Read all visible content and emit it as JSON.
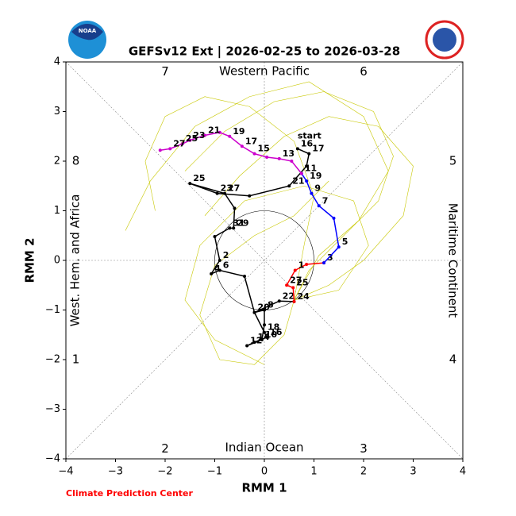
{
  "chart_data": {
    "type": "line",
    "title": "GEFSv12 Ext | 2026-02-25 to 2026-03-28",
    "xlabel": "RMM 1",
    "ylabel": "RMM 2",
    "regions": {
      "top": "Western Pacific",
      "bottom": "Indian Ocean",
      "left": "West. Hem. and Africa",
      "right": "Maritime Continent"
    },
    "phases": [
      "1",
      "2",
      "3",
      "4",
      "5",
      "6",
      "7",
      "8"
    ],
    "start_label": "start",
    "credit": "Climate Prediction Center",
    "logo_text": "NOAA",
    "xlim": [
      -4,
      4
    ],
    "ylim": [
      -4,
      4
    ],
    "xticks": [
      {
        "value": -4,
        "label": "−4"
      },
      {
        "value": -3,
        "label": "−3"
      },
      {
        "value": -2,
        "label": "−2"
      },
      {
        "value": -1,
        "label": "−1"
      },
      0,
      1,
      2,
      3,
      4
    ],
    "yticks": [
      {
        "value": -4,
        "label": "−4"
      },
      {
        "value": -3,
        "label": "−3"
      },
      {
        "value": -2,
        "label": "−2"
      },
      {
        "value": -1,
        "label": "−1"
      },
      0,
      1,
      2,
      3,
      4
    ],
    "series": [
      {
        "color": "#c8c800",
        "x": [
          0.6,
          0.9,
          1.6,
          2.3,
          2.6,
          2.2,
          1.2,
          0.2,
          -0.8,
          -1.6
        ],
        "y": [
          -0.8,
          -0.2,
          0.5,
          1.2,
          2.1,
          3.0,
          3.4,
          3.2,
          2.6,
          1.8
        ]
      },
      {
        "color": "#c8c800",
        "x": [
          0.6,
          1.1,
          1.9,
          2.5,
          2.0,
          0.9,
          -0.3,
          -1.4,
          -2.3,
          -2.8
        ],
        "y": [
          -0.8,
          0.1,
          0.8,
          1.8,
          2.9,
          3.6,
          3.3,
          2.7,
          1.6,
          0.6
        ]
      },
      {
        "color": "#c8c800",
        "x": [
          0.6,
          0.4,
          -0.2,
          -0.9,
          -1.3,
          -1.0,
          -0.2,
          0.6,
          1.3
        ],
        "y": [
          -0.8,
          -1.5,
          -2.1,
          -2.0,
          -1.1,
          -0.1,
          0.5,
          0.9,
          1.6
        ]
      },
      {
        "color": "#c8c800",
        "x": [
          0.6,
          1.3,
          2.0,
          2.8,
          3.0,
          2.3,
          1.3,
          0.4,
          -0.5,
          -1.2
        ],
        "y": [
          -0.8,
          -0.5,
          0.0,
          0.9,
          1.9,
          2.7,
          2.9,
          2.5,
          1.7,
          0.9
        ]
      },
      {
        "color": "#c8c800",
        "x": [
          0.6,
          0.8,
          1.0,
          0.6,
          -0.3,
          -1.2,
          -2.0,
          -2.4,
          -2.2
        ],
        "y": [
          -0.8,
          0.3,
          1.3,
          2.4,
          3.1,
          3.3,
          2.9,
          2.0,
          1.0
        ]
      },
      {
        "color": "#c8c800",
        "x": [
          0.6,
          1.5,
          2.1,
          1.8,
          0.8,
          -0.4,
          -1.3,
          -1.6,
          -1.0,
          0.0
        ],
        "y": [
          -0.8,
          -0.6,
          0.3,
          1.2,
          1.5,
          1.2,
          0.3,
          -0.8,
          -1.6,
          -2.1
        ]
      },
      {
        "color": "#000000",
        "x": [
          0.67,
          0.9,
          0.85,
          0.5,
          -0.3,
          -0.95,
          -1.5,
          -0.8,
          -0.6,
          -0.62,
          -0.7,
          -1.0,
          -0.9,
          -1.07,
          -0.9,
          -0.4,
          -0.2,
          0.0,
          0.0,
          -0.05,
          -0.35,
          -0.2,
          0.05,
          0.0,
          -0.2,
          0.3,
          0.6
        ],
        "y": [
          2.25,
          2.15,
          1.9,
          1.5,
          1.3,
          1.35,
          1.55,
          1.35,
          1.05,
          0.65,
          0.65,
          0.48,
          0.0,
          -0.27,
          -0.2,
          -0.32,
          -1.05,
          -1.0,
          -1.3,
          -1.6,
          -1.72,
          -1.65,
          -1.55,
          -1.45,
          -1.05,
          -0.82,
          -0.83
        ],
        "point_labels": [
          "16",
          "17",
          null,
          "21",
          null,
          "23",
          "25",
          "27",
          null,
          "29",
          "31",
          null,
          "2",
          "4",
          "6",
          null,
          null,
          "8",
          null,
          "10",
          "12",
          "14",
          "16",
          "18",
          "20",
          "22",
          "24"
        ]
      },
      {
        "color": "#ff0000",
        "x": [
          0.6,
          0.58,
          0.45,
          0.62,
          0.85,
          1.2
        ],
        "y": [
          -0.83,
          -0.55,
          -0.5,
          -0.2,
          -0.08,
          -0.05
        ],
        "point_labels": [
          null,
          "25",
          "27",
          "1",
          null,
          "3"
        ]
      },
      {
        "color": "#0000ff",
        "x": [
          1.2,
          1.5,
          1.4,
          1.1,
          0.95,
          0.85,
          0.75
        ],
        "y": [
          -0.05,
          0.27,
          0.85,
          1.1,
          1.35,
          1.6,
          1.75
        ],
        "point_labels": [
          null,
          "5",
          null,
          "7",
          "9",
          "19",
          null
        ]
      },
      {
        "color": "#cc00cc",
        "x": [
          0.75,
          0.55,
          0.3,
          0.05,
          -0.2,
          -0.45,
          -0.7,
          -0.9,
          -1.2,
          -1.5,
          -1.65,
          -1.9,
          -2.1
        ],
        "y": [
          1.75,
          2.0,
          2.05,
          2.08,
          2.15,
          2.3,
          2.5,
          2.58,
          2.52,
          2.42,
          2.35,
          2.25,
          2.22
        ],
        "point_labels": [
          "11",
          null,
          "13",
          null,
          "15",
          "17",
          "19",
          null,
          "21",
          "23",
          "25",
          "27",
          null
        ]
      }
    ]
  }
}
